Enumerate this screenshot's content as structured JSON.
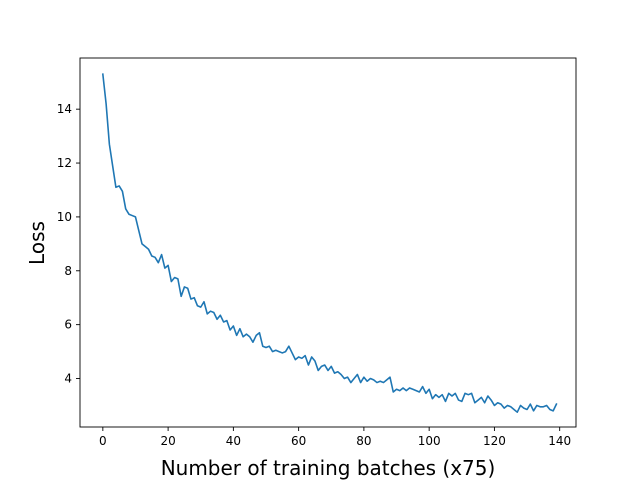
{
  "chart_data": {
    "type": "line",
    "title": "",
    "xlabel": "Number of training batches (x75)",
    "ylabel": "Loss",
    "xlim": [
      -7,
      145
    ],
    "ylim": [
      2.2,
      15.9
    ],
    "xticks": [
      0,
      20,
      40,
      60,
      80,
      100,
      120,
      140
    ],
    "yticks": [
      4,
      6,
      8,
      10,
      12,
      14
    ],
    "grid": false,
    "legend": "none",
    "line_color": "#1f77b4",
    "series": [
      {
        "x_start": 0,
        "x_step": 1,
        "values": [
          15.3,
          14.2,
          12.7,
          11.9,
          11.1,
          11.15,
          10.95,
          10.3,
          10.1,
          10.05,
          10.0,
          9.5,
          9.0,
          8.9,
          8.8,
          8.55,
          8.5,
          8.3,
          8.6,
          8.1,
          8.2,
          7.6,
          7.75,
          7.7,
          7.05,
          7.4,
          7.35,
          6.95,
          7.0,
          6.7,
          6.65,
          6.85,
          6.4,
          6.5,
          6.45,
          6.2,
          6.35,
          6.1,
          6.15,
          5.8,
          5.95,
          5.6,
          5.85,
          5.55,
          5.65,
          5.55,
          5.35,
          5.6,
          5.7,
          5.2,
          5.15,
          5.2,
          5.0,
          5.05,
          5.0,
          4.95,
          5.0,
          5.2,
          4.95,
          4.7,
          4.8,
          4.75,
          4.85,
          4.5,
          4.8,
          4.65,
          4.3,
          4.45,
          4.5,
          4.3,
          4.45,
          4.2,
          4.25,
          4.15,
          4.0,
          4.05,
          3.85,
          4.0,
          4.15,
          3.85,
          4.05,
          3.9,
          4.0,
          3.95,
          3.85,
          3.9,
          3.85,
          3.95,
          4.05,
          3.5,
          3.6,
          3.55,
          3.65,
          3.55,
          3.65,
          3.6,
          3.55,
          3.5,
          3.7,
          3.45,
          3.6,
          3.25,
          3.4,
          3.3,
          3.4,
          3.15,
          3.45,
          3.35,
          3.45,
          3.2,
          3.15,
          3.45,
          3.4,
          3.45,
          3.1,
          3.2,
          3.3,
          3.1,
          3.35,
          3.2,
          3.0,
          3.1,
          3.05,
          2.9,
          3.0,
          2.95,
          2.85,
          2.75,
          3.0,
          2.9,
          2.85,
          3.05,
          2.8,
          3.0,
          2.95,
          2.95,
          3.0,
          2.85,
          2.8,
          3.05
        ]
      }
    ]
  }
}
